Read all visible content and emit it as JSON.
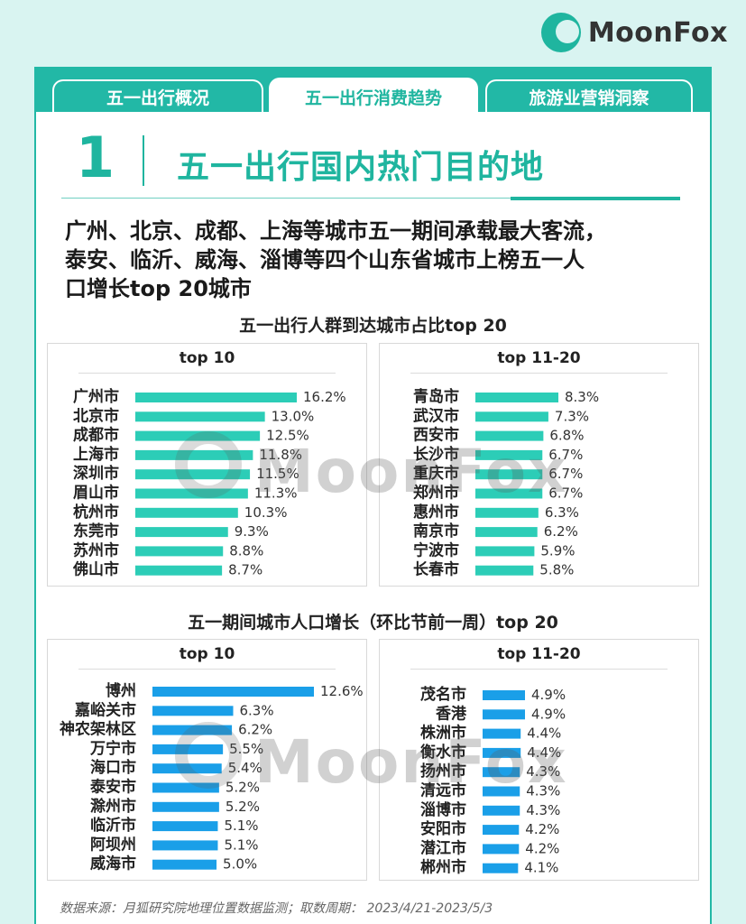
{
  "brand": {
    "name": "MoonFox"
  },
  "colors": {
    "accent": "#1fb59f",
    "bar_teal": "#2ccdb7",
    "bar_blue": "#1a9fe8"
  },
  "tabs": [
    {
      "label": "五一出行概况",
      "active": false
    },
    {
      "label": "五一出行消费趋势",
      "active": true
    },
    {
      "label": "旅游业营销洞察",
      "active": false
    }
  ],
  "section": {
    "number": "1",
    "title": "五一出行国内热门目的地"
  },
  "headline": [
    "广州、北京、成都、上海等城市五一期间承载最大客流，",
    "泰安、临沂、威海、淄博等四个山东省城市上榜五一人",
    "口增长top 20城市"
  ],
  "watermark": "MoonFox",
  "chart_data": [
    {
      "type": "bar",
      "orientation": "horizontal",
      "title": "五一出行人群到达城市占比top 20",
      "panel_title": "top 10",
      "categories": [
        "广州市",
        "北京市",
        "成都市",
        "上海市",
        "深圳市",
        "眉山市",
        "杭州市",
        "东莞市",
        "苏州市",
        "佛山市"
      ],
      "values": [
        16.2,
        13.0,
        12.5,
        11.8,
        11.5,
        11.3,
        10.3,
        9.3,
        8.8,
        8.7
      ],
      "labels": [
        "16.2%",
        "13.0%",
        "12.5%",
        "11.8%",
        "11.5%",
        "11.3%",
        "10.3%",
        "9.3%",
        "8.8%",
        "8.7%"
      ],
      "unit": "%",
      "color": "#2ccdb7"
    },
    {
      "type": "bar",
      "orientation": "horizontal",
      "panel_title": "top 11-20",
      "categories": [
        "青岛市",
        "武汉市",
        "西安市",
        "长沙市",
        "重庆市",
        "郑州市",
        "惠州市",
        "南京市",
        "宁波市",
        "长春市"
      ],
      "values": [
        8.3,
        7.3,
        6.8,
        6.7,
        6.7,
        6.7,
        6.3,
        6.2,
        5.9,
        5.8
      ],
      "labels": [
        "8.3%",
        "7.3%",
        "6.8%",
        "6.7%",
        "6.7%",
        "6.7%",
        "6.3%",
        "6.2%",
        "5.9%",
        "5.8%"
      ],
      "unit": "%",
      "color": "#2ccdb7"
    },
    {
      "type": "bar",
      "orientation": "horizontal",
      "title": "五一期间城市人口增长（环比节前一周）top 20",
      "panel_title": "top 10",
      "categories": [
        "博州",
        "嘉峪关市",
        "神农架林区",
        "万宁市",
        "海口市",
        "泰安市",
        "滁州市",
        "临沂市",
        "阿坝州",
        "威海市"
      ],
      "values": [
        12.6,
        6.3,
        6.2,
        5.5,
        5.4,
        5.2,
        5.2,
        5.1,
        5.1,
        5.0
      ],
      "labels": [
        "12.6%",
        "6.3%",
        "6.2%",
        "5.5%",
        "5.4%",
        "5.2%",
        "5.2%",
        "5.1%",
        "5.1%",
        "5.0%"
      ],
      "unit": "%",
      "color": "#1a9fe8"
    },
    {
      "type": "bar",
      "orientation": "horizontal",
      "panel_title": "top 11-20",
      "categories": [
        "茂名市",
        "香港",
        "株洲市",
        "衡水市",
        "扬州市",
        "清远市",
        "淄博市",
        "安阳市",
        "潜江市",
        "郴州市"
      ],
      "values": [
        4.9,
        4.9,
        4.4,
        4.4,
        4.3,
        4.3,
        4.3,
        4.2,
        4.2,
        4.1
      ],
      "labels": [
        "4.9%",
        "4.9%",
        "4.4%",
        "4.4%",
        "4.3%",
        "4.3%",
        "4.3%",
        "4.2%",
        "4.2%",
        "4.1%"
      ],
      "unit": "%",
      "color": "#1a9fe8"
    }
  ],
  "footer": "数据来源：月狐研究院地理位置数据监测；取数周期：  2023/4/21-2023/5/3"
}
